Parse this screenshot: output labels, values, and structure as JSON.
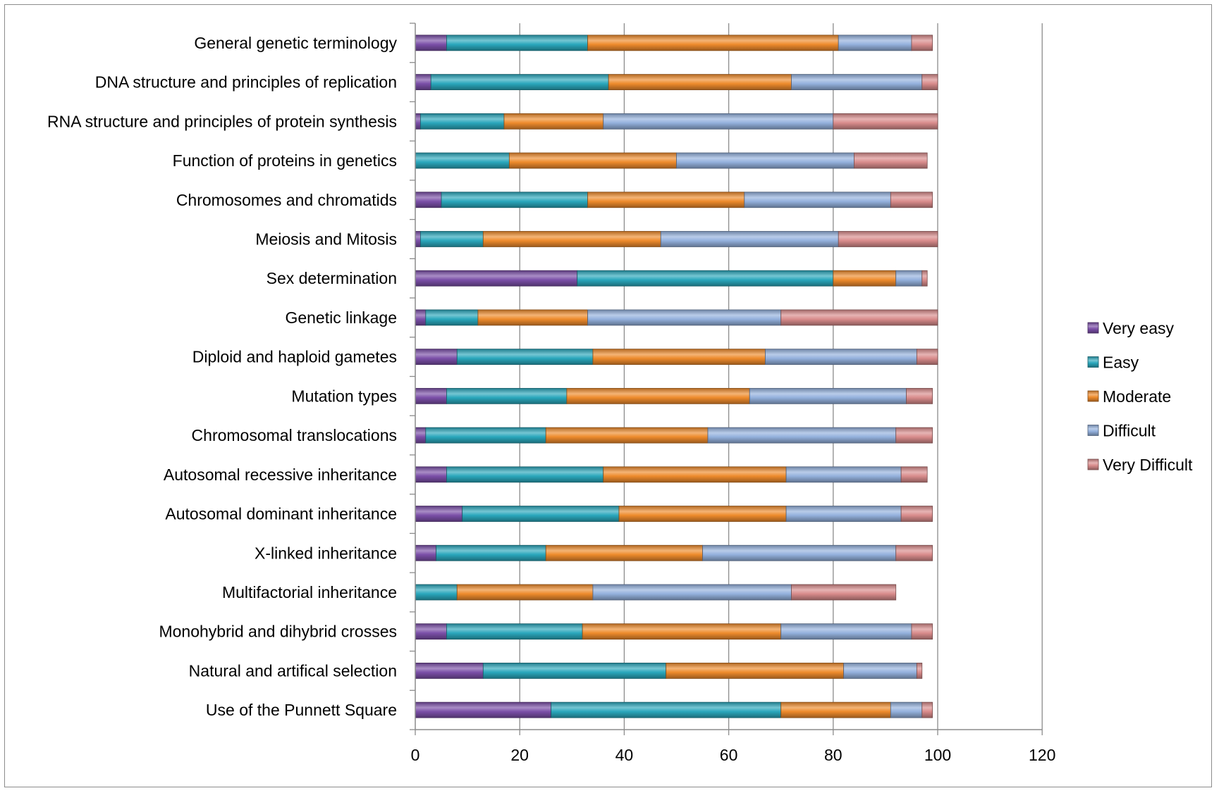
{
  "chart_data": {
    "type": "bar",
    "orientation": "horizontal",
    "stacked": true,
    "title": "",
    "xlabel": "",
    "ylabel": "",
    "xlim": [
      0,
      120
    ],
    "x_ticks": [
      0,
      20,
      40,
      60,
      80,
      100,
      120
    ],
    "grid": "vertical major gridlines",
    "legend_position": "right",
    "categories": [
      "General genetic terminology",
      "DNA structure and principles of replication",
      "RNA structure and principles of protein synthesis",
      "Function of proteins in genetics",
      "Chromosomes and chromatids",
      "Meiosis and Mitosis",
      "Sex determination",
      "Genetic linkage",
      "Diploid and haploid gametes",
      "Mutation types",
      "Chromosomal translocations",
      "Autosomal recessive inheritance",
      "Autosomal dominant inheritance",
      "X-linked inheritance",
      "Multifactorial inheritance",
      "Monohybrid and dihybrid crosses",
      "Natural and artifical selection",
      "Use of the Punnett Square"
    ],
    "series": [
      {
        "name": "Very easy",
        "color": "#7b4fa8",
        "values": [
          6,
          3,
          1,
          0,
          5,
          1,
          31,
          2,
          8,
          6,
          2,
          6,
          9,
          4,
          0,
          6,
          13,
          26
        ]
      },
      {
        "name": "Easy",
        "color": "#2aa7bc",
        "values": [
          27,
          34,
          16,
          18,
          28,
          12,
          49,
          10,
          26,
          23,
          23,
          30,
          30,
          21,
          8,
          26,
          35,
          44
        ]
      },
      {
        "name": "Moderate",
        "color": "#ee8b2c",
        "values": [
          48,
          35,
          19,
          32,
          30,
          34,
          12,
          21,
          33,
          35,
          31,
          35,
          32,
          30,
          26,
          38,
          34,
          21
        ]
      },
      {
        "name": "Difficult",
        "color": "#94b1dd",
        "values": [
          14,
          25,
          44,
          34,
          28,
          34,
          5,
          37,
          29,
          30,
          36,
          22,
          22,
          37,
          38,
          25,
          14,
          6
        ]
      },
      {
        "name": "Very Difficult",
        "color": "#d98c8c",
        "values": [
          4,
          3,
          20,
          14,
          8,
          19,
          1,
          30,
          4,
          5,
          7,
          5,
          6,
          7,
          20,
          4,
          1,
          2
        ]
      }
    ]
  }
}
